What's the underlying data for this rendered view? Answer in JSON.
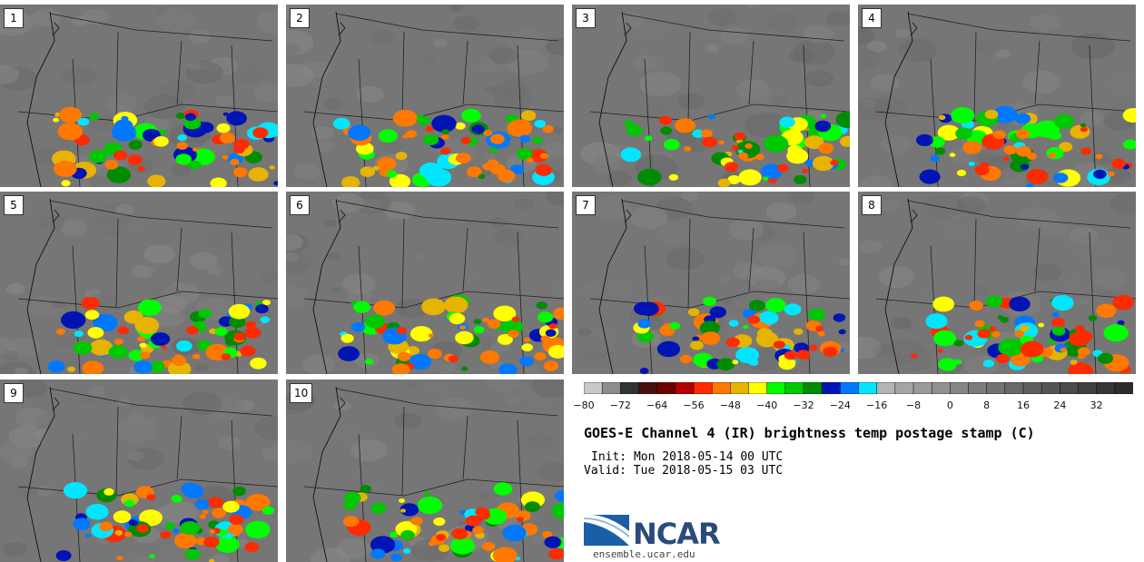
{
  "panels": [
    {
      "label": "1"
    },
    {
      "label": "2"
    },
    {
      "label": "3"
    },
    {
      "label": "4"
    },
    {
      "label": "5"
    },
    {
      "label": "6"
    },
    {
      "label": "7"
    },
    {
      "label": "8"
    },
    {
      "label": "9"
    },
    {
      "label": "10"
    }
  ],
  "colorbar": {
    "ticks": [
      "−80",
      "−72",
      "−64",
      "−56",
      "−48",
      "−40",
      "−32",
      "−24",
      "−16",
      "−8",
      "0",
      "8",
      "16",
      "24",
      "32"
    ],
    "colors": [
      "#c8c8c8",
      "#8c8c8c",
      "#333333",
      "#4a1010",
      "#6e0000",
      "#b40000",
      "#ff2a00",
      "#ff7800",
      "#e6b400",
      "#ffff00",
      "#00ff00",
      "#00c800",
      "#008c00",
      "#0014b4",
      "#0078ff",
      "#00e6ff",
      "#b4b4b4",
      "#a5a5a5",
      "#9a9a9a",
      "#909090",
      "#868686",
      "#7c7c7c",
      "#727272",
      "#686868",
      "#5e5e5e",
      "#545454",
      "#4a4a4a",
      "#404040",
      "#363636",
      "#2c2c2c"
    ]
  },
  "title": "GOES-E Channel 4 (IR) brightness temp postage stamp (C)",
  "init": "Init: Mon 2018-05-14 00 UTC",
  "valid": "Valid: Tue 2018-05-15 03 UTC",
  "logo": {
    "name": "NCAR"
  },
  "site": "ensemble.ucar.edu"
}
